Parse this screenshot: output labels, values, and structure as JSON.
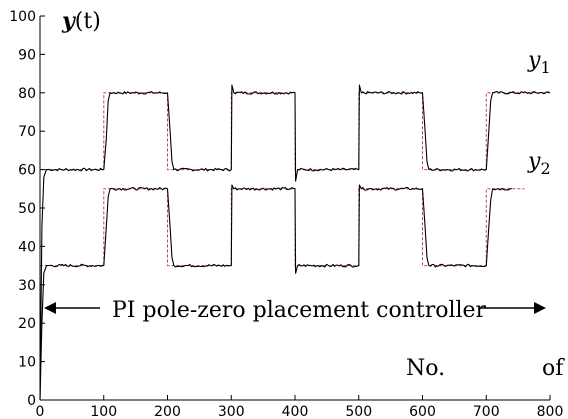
{
  "chart_data": {
    "type": "line",
    "ylabel_main": "y",
    "ylabel_suffix": "(t)",
    "xlim": [
      0,
      800
    ],
    "ylim": [
      0,
      100
    ],
    "xticks": [
      0,
      100,
      200,
      300,
      400,
      500,
      600,
      700,
      800
    ],
    "yticks": [
      0,
      10,
      20,
      30,
      40,
      50,
      60,
      70,
      80,
      90,
      100
    ],
    "annotation": "PI pole-zero placement controller",
    "xlabel_left": "No.",
    "xlabel_right": "of",
    "series": [
      {
        "name": "y1",
        "label_main": "y",
        "label_sub": "1",
        "setpoint": [
          [
            0,
            60
          ],
          [
            100,
            60
          ],
          [
            100,
            80
          ],
          [
            200,
            80
          ],
          [
            200,
            60
          ],
          [
            300,
            60
          ],
          [
            300,
            80
          ],
          [
            400,
            80
          ],
          [
            400,
            60
          ],
          [
            500,
            60
          ],
          [
            500,
            80
          ],
          [
            600,
            80
          ],
          [
            600,
            60
          ],
          [
            700,
            60
          ],
          [
            700,
            80
          ],
          [
            800,
            80
          ]
        ],
        "output": [
          [
            0,
            0
          ],
          [
            3,
            45
          ],
          [
            6,
            58
          ],
          [
            10,
            60
          ],
          [
            100,
            60
          ],
          [
            104,
            68
          ],
          [
            107,
            78
          ],
          [
            110,
            80
          ],
          [
            200,
            80
          ],
          [
            204,
            70
          ],
          [
            207,
            62
          ],
          [
            210,
            60
          ],
          [
            300,
            60
          ],
          [
            301,
            82
          ],
          [
            304,
            80
          ],
          [
            400,
            80
          ],
          [
            401,
            57
          ],
          [
            404,
            60
          ],
          [
            500,
            60
          ],
          [
            501,
            82
          ],
          [
            504,
            80
          ],
          [
            600,
            80
          ],
          [
            604,
            70
          ],
          [
            607,
            62
          ],
          [
            610,
            60
          ],
          [
            700,
            60
          ],
          [
            704,
            70
          ],
          [
            707,
            78
          ],
          [
            710,
            80
          ],
          [
            800,
            80
          ]
        ]
      },
      {
        "name": "y2",
        "label_main": "y",
        "label_sub": "2",
        "setpoint": [
          [
            0,
            35
          ],
          [
            100,
            35
          ],
          [
            100,
            55
          ],
          [
            200,
            55
          ],
          [
            200,
            35
          ],
          [
            300,
            35
          ],
          [
            300,
            55
          ],
          [
            400,
            55
          ],
          [
            400,
            35
          ],
          [
            500,
            35
          ],
          [
            500,
            55
          ],
          [
            600,
            55
          ],
          [
            600,
            35
          ],
          [
            700,
            35
          ],
          [
            700,
            55
          ],
          [
            760,
            55
          ]
        ],
        "output": [
          [
            0,
            0
          ],
          [
            3,
            20
          ],
          [
            6,
            33
          ],
          [
            10,
            35
          ],
          [
            100,
            35
          ],
          [
            104,
            45
          ],
          [
            107,
            53
          ],
          [
            110,
            55
          ],
          [
            200,
            55
          ],
          [
            204,
            45
          ],
          [
            207,
            37
          ],
          [
            210,
            35
          ],
          [
            300,
            35
          ],
          [
            301,
            56
          ],
          [
            304,
            55
          ],
          [
            400,
            55
          ],
          [
            401,
            33
          ],
          [
            404,
            35
          ],
          [
            500,
            35
          ],
          [
            501,
            56
          ],
          [
            504,
            55
          ],
          [
            600,
            55
          ],
          [
            604,
            45
          ],
          [
            607,
            37
          ],
          [
            610,
            35
          ],
          [
            700,
            35
          ],
          [
            704,
            45
          ],
          [
            707,
            52
          ],
          [
            710,
            55
          ],
          [
            740,
            55
          ]
        ]
      }
    ],
    "colors": {
      "output": "#000000",
      "setpoint": "#d04040"
    }
  }
}
